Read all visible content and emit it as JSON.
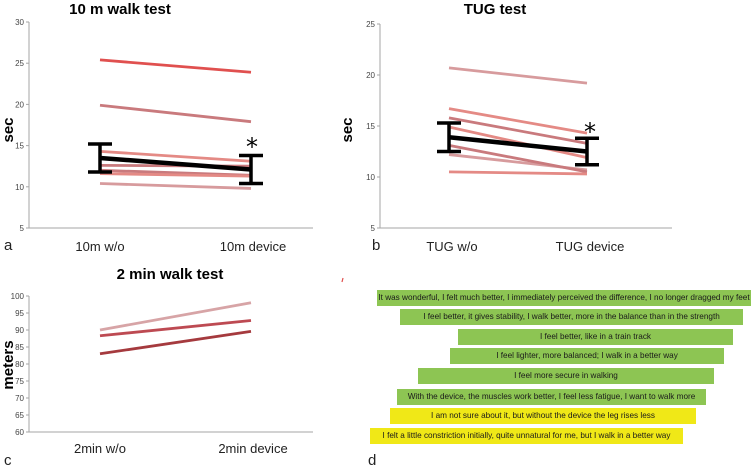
{
  "colors": {
    "axis": "#a6a6a6",
    "grid": "#d9d9d9",
    "mean": "#000000",
    "quote_positive": "#8dc553",
    "quote_neutral": "#f0e817"
  },
  "chart_data": [
    {
      "type": "line",
      "title": "10 m walk test",
      "ylabel": "sec",
      "panel_label": "a",
      "categories": [
        "10m w/o",
        "10m device"
      ],
      "ylim": [
        5,
        30
      ],
      "yticks": [
        "5",
        "10",
        "15",
        "20",
        "25",
        "30"
      ],
      "series": [
        {
          "values": [
            25.4,
            23.9
          ],
          "color": "#e0504f"
        },
        {
          "values": [
            19.9,
            17.9
          ],
          "color": "#c97a7d"
        },
        {
          "values": [
            14.3,
            13.1
          ],
          "color": "#e48a85"
        },
        {
          "values": [
            12.6,
            12.5
          ],
          "color": "#c97a7d"
        },
        {
          "values": [
            12.0,
            11.4
          ],
          "color": "#c97a7d"
        },
        {
          "values": [
            11.6,
            11.3
          ],
          "color": "#e48a85"
        },
        {
          "values": [
            10.4,
            9.8
          ],
          "color": "#d79b9d"
        }
      ],
      "mean": {
        "values": [
          13.5,
          12.1
        ],
        "error": [
          1.7,
          1.7
        ]
      },
      "significance": "*"
    },
    {
      "type": "line",
      "title": "TUG test",
      "ylabel": "sec",
      "panel_label": "b",
      "categories": [
        "TUG w/o",
        "TUG device"
      ],
      "ylim": [
        5,
        25
      ],
      "yticks": [
        "5",
        "10",
        "15",
        "20",
        "25"
      ],
      "series": [
        {
          "values": [
            20.7,
            19.2
          ],
          "color": "#d79b9d"
        },
        {
          "values": [
            16.7,
            14.3
          ],
          "color": "#e48a85"
        },
        {
          "values": [
            15.8,
            13.3
          ],
          "color": "#c97a7d"
        },
        {
          "values": [
            14.9,
            11.9
          ],
          "color": "#e48a85"
        },
        {
          "values": [
            12.2,
            10.7
          ],
          "color": "#d79b9d"
        },
        {
          "values": [
            13.1,
            10.5
          ],
          "color": "#c97a7d"
        },
        {
          "values": [
            10.5,
            10.3
          ],
          "color": "#e48a85"
        }
      ],
      "mean": {
        "values": [
          13.9,
          12.5
        ],
        "error": [
          1.4,
          1.3
        ]
      },
      "significance": "*"
    },
    {
      "type": "line",
      "title": "2 min walk test",
      "ylabel": "meters",
      "panel_label": "c",
      "categories": [
        "2min w/o",
        "2min device"
      ],
      "ylim": [
        60,
        100
      ],
      "yticks": [
        "60",
        "65",
        "70",
        "75",
        "80",
        "85",
        "90",
        "95",
        "100"
      ],
      "series": [
        {
          "values": [
            90.0,
            98.0
          ],
          "color": "#d7a4a6"
        },
        {
          "values": [
            88.3,
            92.8
          ],
          "color": "#bd4a52"
        },
        {
          "values": [
            83.0,
            89.6
          ],
          "color": "#a53a3e"
        }
      ]
    }
  ],
  "panel_d": {
    "label": "d",
    "quotes": [
      {
        "text": "It was wonderful, I felt much better, I immediately perceived the difference, I no longer dragged my feet",
        "color": "#8dc553"
      },
      {
        "text": "I feel better, it gives stability, I walk better, more in the balance than in the strength",
        "color": "#8dc553"
      },
      {
        "text": "I feel better, like in a train track",
        "color": "#8dc553"
      },
      {
        "text": "I feel lighter, more balanced; I walk in a better way",
        "color": "#8dc553"
      },
      {
        "text": "I feel more secure in walking",
        "color": "#8dc553"
      },
      {
        "text": "With the device, the muscles work better, I feel less fatigue, I want to walk more",
        "color": "#8dc553"
      },
      {
        "text": "I am not sure about it, but without the device the leg rises less",
        "color": "#f0e817"
      },
      {
        "text": "I felt a little constriction initially, quite unnatural for me, but I walk in a better way",
        "color": "#f0e817"
      }
    ]
  }
}
